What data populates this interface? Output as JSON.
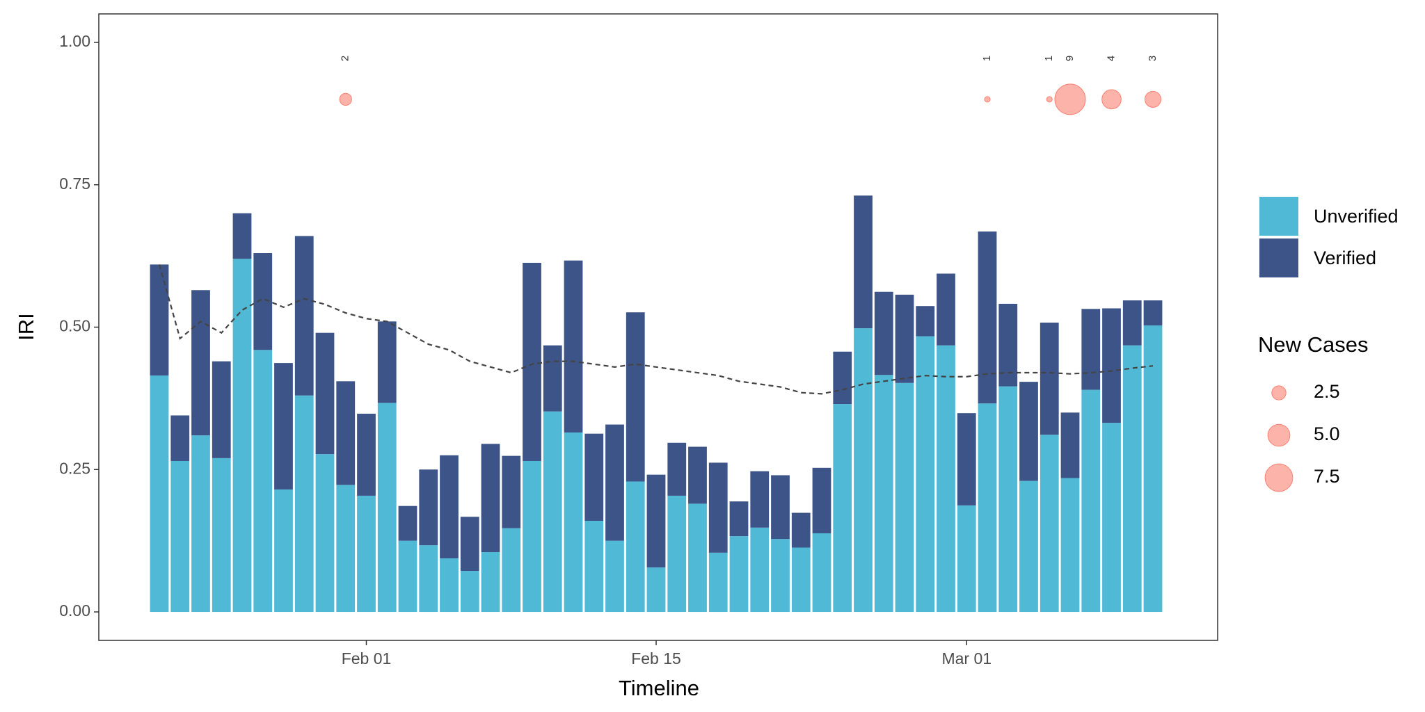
{
  "chart_data": {
    "type": "bar",
    "stacked": true,
    "xlabel": "Timeline",
    "ylabel": "IRI",
    "x": [
      "01-22",
      "01-23",
      "01-24",
      "01-25",
      "01-26",
      "01-27",
      "01-28",
      "01-29",
      "01-30",
      "01-31",
      "02-01",
      "02-02",
      "02-03",
      "02-04",
      "02-05",
      "02-06",
      "02-07",
      "02-08",
      "02-09",
      "02-10",
      "02-11",
      "02-12",
      "02-13",
      "02-14",
      "02-15",
      "02-16",
      "02-17",
      "02-18",
      "02-19",
      "02-20",
      "02-21",
      "02-22",
      "02-23",
      "02-24",
      "02-25",
      "02-26",
      "02-27",
      "02-28",
      "02-29",
      "03-01",
      "03-02",
      "03-03",
      "03-04",
      "03-05",
      "03-06",
      "03-07",
      "03-08",
      "03-09",
      "03-10"
    ],
    "series": [
      {
        "name": "Unverified",
        "color": "#4fb9d6",
        "values": [
          0.415,
          0.265,
          0.31,
          0.27,
          0.62,
          0.46,
          0.215,
          0.38,
          0.277,
          0.223,
          0.204,
          0.367,
          0.125,
          0.117,
          0.094,
          0.072,
          0.105,
          0.147,
          0.265,
          0.352,
          0.315,
          0.16,
          0.125,
          0.229,
          0.078,
          0.204,
          0.19,
          0.104,
          0.133,
          0.148,
          0.128,
          0.113,
          0.138,
          0.365,
          0.498,
          0.416,
          0.402,
          0.484,
          0.468,
          0.187,
          0.366,
          0.396,
          0.23,
          0.311,
          0.235,
          0.39,
          0.332,
          0.468,
          0.503
        ]
      },
      {
        "name": "Verified",
        "color": "#3c5488",
        "values": [
          0.195,
          0.08,
          0.255,
          0.17,
          0.08,
          0.17,
          0.222,
          0.28,
          0.213,
          0.182,
          0.144,
          0.143,
          0.061,
          0.133,
          0.181,
          0.095,
          0.19,
          0.127,
          0.348,
          0.116,
          0.302,
          0.153,
          0.204,
          0.297,
          0.163,
          0.093,
          0.1,
          0.158,
          0.061,
          0.099,
          0.112,
          0.061,
          0.115,
          0.092,
          0.233,
          0.146,
          0.155,
          0.053,
          0.126,
          0.162,
          0.302,
          0.145,
          0.174,
          0.197,
          0.115,
          0.142,
          0.201,
          0.079,
          0.044
        ]
      }
    ],
    "trend": {
      "color": "#444444",
      "dashed": true,
      "values": [
        0.61,
        0.48,
        0.51,
        0.49,
        0.53,
        0.55,
        0.535,
        0.55,
        0.54,
        0.525,
        0.515,
        0.51,
        0.49,
        0.47,
        0.46,
        0.44,
        0.43,
        0.42,
        0.435,
        0.44,
        0.44,
        0.435,
        0.43,
        0.435,
        0.43,
        0.425,
        0.42,
        0.415,
        0.405,
        0.4,
        0.395,
        0.385,
        0.383,
        0.39,
        0.4,
        0.405,
        0.41,
        0.415,
        0.413,
        0.413,
        0.418,
        0.42,
        0.42,
        0.42,
        0.418,
        0.42,
        0.423,
        0.428,
        0.432
      ]
    },
    "bubbles": {
      "name": "New Cases",
      "color": "#fa8072",
      "x": [
        "01-31",
        "03-02",
        "03-05",
        "03-06",
        "03-08",
        "03-10"
      ],
      "y": [
        0.9,
        0.9,
        0.9,
        0.9,
        0.9,
        0.9
      ],
      "sizes": [
        2,
        1,
        1,
        9,
        4,
        3
      ],
      "legend": [
        2.5,
        {
          "value": 5,
          "label": "5.0"
        },
        7.5
      ]
    },
    "ylim": [
      -0.05,
      1.05
    ],
    "yticks": [
      {
        "value": 0,
        "label": "0.00"
      },
      {
        "value": 0.25,
        "label": "0.25"
      },
      {
        "value": 0.5,
        "label": "0.50"
      },
      {
        "value": 0.75,
        "label": "0.75"
      },
      {
        "value": 1,
        "label": "1.00"
      }
    ],
    "xticks": [
      {
        "value": "02-01",
        "label": "Feb 01"
      },
      {
        "value": "02-15",
        "label": "Feb 15"
      },
      {
        "value": "03-01",
        "label": "Mar 01"
      }
    ],
    "legend_position": "right"
  }
}
